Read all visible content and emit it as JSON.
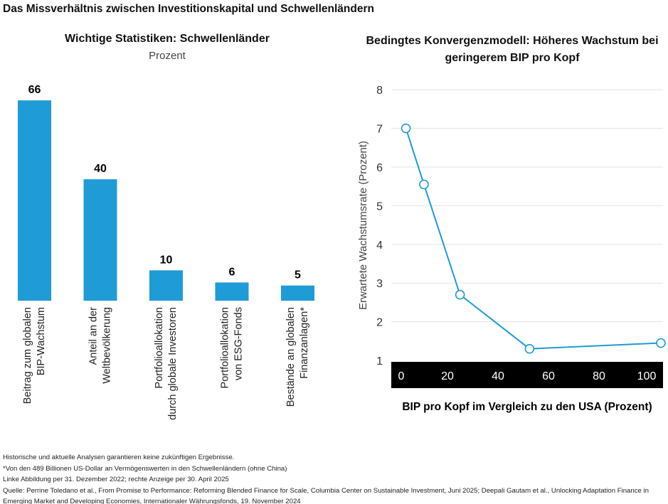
{
  "title": "Das Missverhältnis zwischen Investitionskapital und Schwellenländern",
  "chart_data": [
    {
      "type": "bar",
      "title": "Wichtige Statistiken: Schwellenländer",
      "subtitle": "Prozent",
      "categories": [
        [
          "Beitrag zum globalen",
          "BIP-Wachstum"
        ],
        [
          "Anteil an der",
          "Weltbevölkerung"
        ],
        [
          "Portfolioallokation",
          "durch globale Investoren"
        ],
        [
          "Portfolioallokation",
          "von ESG-Fonds"
        ],
        [
          "Bestände an globalen",
          "Finanzanlagen*"
        ]
      ],
      "values": [
        66,
        40,
        10,
        6,
        5
      ],
      "color": "#1f9bd7",
      "grid": false
    },
    {
      "type": "line",
      "title": "Bedingtes Konvergenzmodell: Höheres Wachstum bei geringerem BIP pro Kopf",
      "xlabel": "BIP pro Kopf im Vergleich zu den USA (Prozent)",
      "ylabel": "Erwartete Wachstumsrate (Prozent)",
      "x": [
        1,
        8,
        22,
        49,
        100
      ],
      "y": [
        7,
        5.55,
        2.7,
        1.3,
        1.45
      ],
      "xlim": [
        0,
        100
      ],
      "ylim": [
        1,
        8
      ],
      "xticks": [
        "0",
        "20",
        "40",
        "60",
        "80",
        "100"
      ],
      "yticks": [
        "1",
        "2",
        "3",
        "4",
        "5",
        "6",
        "7",
        "8"
      ],
      "color": "#1f9bd7",
      "grid": true
    }
  ],
  "notes": [
    "Historische und aktuelle Analysen garantieren keine zukünftigen Ergebnisse.",
    "*Von den 489 Billionen US-Dollar an Vermögenswerten in den Schwellenländern (ohne China)",
    "Linke Abbildung per 31. Dezember 2022; rechte Anzeige per 30. April 2025",
    "Quelle: Perrine Toledano et al., From Promise to Performance: Reforming Blended Finance for Scale, Columbia Center on Sustainable Investment, Juni 2025; Deepali Gautam et al., Unlocking Adaptation Finance in",
    "Emerging Market and Developing Economies, Internationaler Währungsfonds, 19. November 2024"
  ]
}
